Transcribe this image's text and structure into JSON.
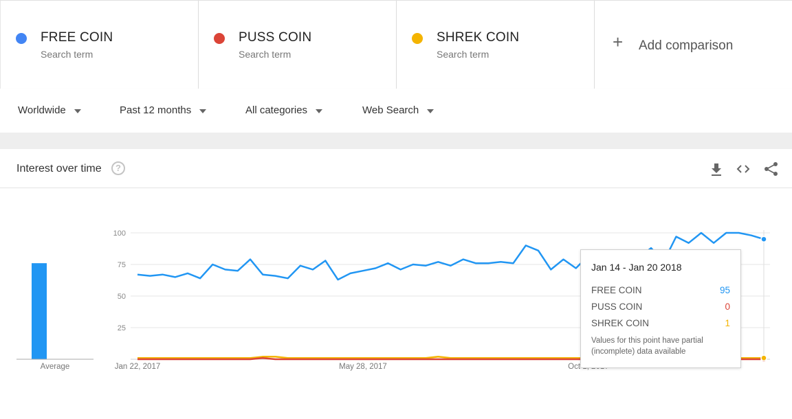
{
  "terms": [
    {
      "name": "FREE COIN",
      "sub": "Search term",
      "color": "#4285f4"
    },
    {
      "name": "PUSS COIN",
      "sub": "Search term",
      "color": "#db4437"
    },
    {
      "name": "SHREK COIN",
      "sub": "Search term",
      "color": "#f4b400"
    }
  ],
  "add_comparison": {
    "label": "Add comparison"
  },
  "filters": {
    "region": "Worldwide",
    "time": "Past 12 months",
    "category": "All categories",
    "search_type": "Web Search"
  },
  "card": {
    "title": "Interest over time",
    "icons": [
      "help-icon",
      "download-icon",
      "embed-icon",
      "share-icon"
    ]
  },
  "average": {
    "label": "Average",
    "value": 76,
    "color": "#2196f3"
  },
  "tooltip": {
    "title": "Jan 14 - Jan 20 2018",
    "rows": [
      {
        "name": "FREE COIN",
        "value": "95",
        "color": "#2196f3"
      },
      {
        "name": "PUSS COIN",
        "value": "0",
        "color": "#db4437"
      },
      {
        "name": "SHREK COIN",
        "value": "1",
        "color": "#f4b400"
      }
    ],
    "note": "Values for this point have partial (incomplete) data available"
  },
  "chart_data": {
    "type": "line",
    "ylim": [
      0,
      100
    ],
    "yticks": [
      "25",
      "50",
      "75",
      "100"
    ],
    "xtick_labels": [
      "Jan 22, 2017",
      "May 28, 2017",
      "Oct 1, 2017"
    ],
    "xtick_weeks": [
      0,
      18,
      36
    ],
    "grid": true,
    "series": [
      {
        "name": "FREE COIN",
        "color": "#2196f3",
        "values": [
          67,
          66,
          67,
          65,
          68,
          64,
          75,
          71,
          70,
          79,
          67,
          66,
          64,
          74,
          71,
          78,
          63,
          68,
          70,
          72,
          76,
          71,
          75,
          74,
          77,
          74,
          79,
          76,
          76,
          77,
          76,
          90,
          86,
          71,
          79,
          72,
          82,
          78,
          76,
          82,
          80,
          88,
          77,
          97,
          92,
          100,
          92,
          100,
          100,
          98,
          95
        ]
      },
      {
        "name": "PUSS COIN",
        "color": "#db4437",
        "values": [
          0,
          0,
          0,
          0,
          0,
          0,
          0,
          0,
          0,
          0,
          1,
          0,
          0,
          0,
          0,
          0,
          0,
          0,
          0,
          0,
          0,
          0,
          0,
          0,
          0,
          0,
          0,
          0,
          0,
          0,
          0,
          0,
          0,
          0,
          0,
          0,
          0,
          0,
          0,
          0,
          0,
          0,
          0,
          0,
          0,
          0,
          0,
          0,
          0,
          0,
          0
        ]
      },
      {
        "name": "SHREK COIN",
        "color": "#f4b400",
        "values": [
          1,
          1,
          1,
          1,
          1,
          1,
          1,
          1,
          1,
          1,
          2,
          2,
          1,
          1,
          1,
          1,
          1,
          1,
          1,
          1,
          1,
          1,
          1,
          1,
          2,
          1,
          1,
          1,
          1,
          1,
          1,
          1,
          1,
          1,
          1,
          1,
          1,
          1,
          1,
          1,
          1,
          1,
          1,
          1,
          1,
          1,
          1,
          1,
          1,
          1,
          1
        ]
      }
    ]
  }
}
